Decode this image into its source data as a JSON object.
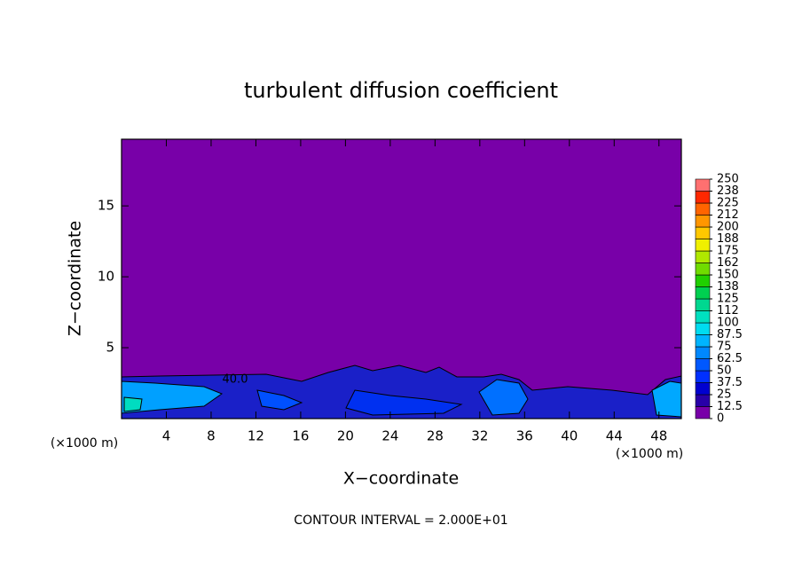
{
  "chart_data": {
    "type": "contour",
    "title": "turbulent diffusion coefficient",
    "x_label": "X−coordinate",
    "y_label": "Z−coordinate",
    "x_unit": "(×1000 m)",
    "y_unit": "(×1000 m)",
    "annotation": "CONTOUR INTERVAL = 2.000E+01",
    "contour_label": "40.0",
    "xlim": [
      0,
      50
    ],
    "ylim": [
      0,
      19.7
    ],
    "xticks": [
      4,
      8,
      12,
      16,
      20,
      24,
      28,
      32,
      36,
      40,
      44,
      48
    ],
    "yticks": [
      5,
      10,
      15
    ],
    "colorbar": {
      "ticks": [
        0,
        12.5,
        25,
        37.5,
        50,
        62.5,
        75,
        87.5,
        100,
        {
          "value": 112.5,
          "label": "112"
        },
        125,
        {
          "value": 137.5,
          "label": "138"
        },
        150,
        {
          "value": 162.5,
          "label": "162"
        },
        175,
        {
          "value": 187.5,
          "label": "188"
        },
        200,
        {
          "value": 212.5,
          "label": "212"
        },
        225,
        {
          "value": 237.5,
          "label": "238"
        },
        250
      ],
      "colors": [
        "#7800a8",
        "#2800a8",
        "#0000d0",
        "#0030ff",
        "#0058ff",
        "#0088ff",
        "#00b4ff",
        "#00dcf0",
        "#00e0c0",
        "#00d890",
        "#00d050",
        "#20d000",
        "#70dc00",
        "#b0e800",
        "#f0f000",
        "#ffc800",
        "#ff9600",
        "#ff6400",
        "#ff2800",
        "#ff7070"
      ]
    }
  }
}
